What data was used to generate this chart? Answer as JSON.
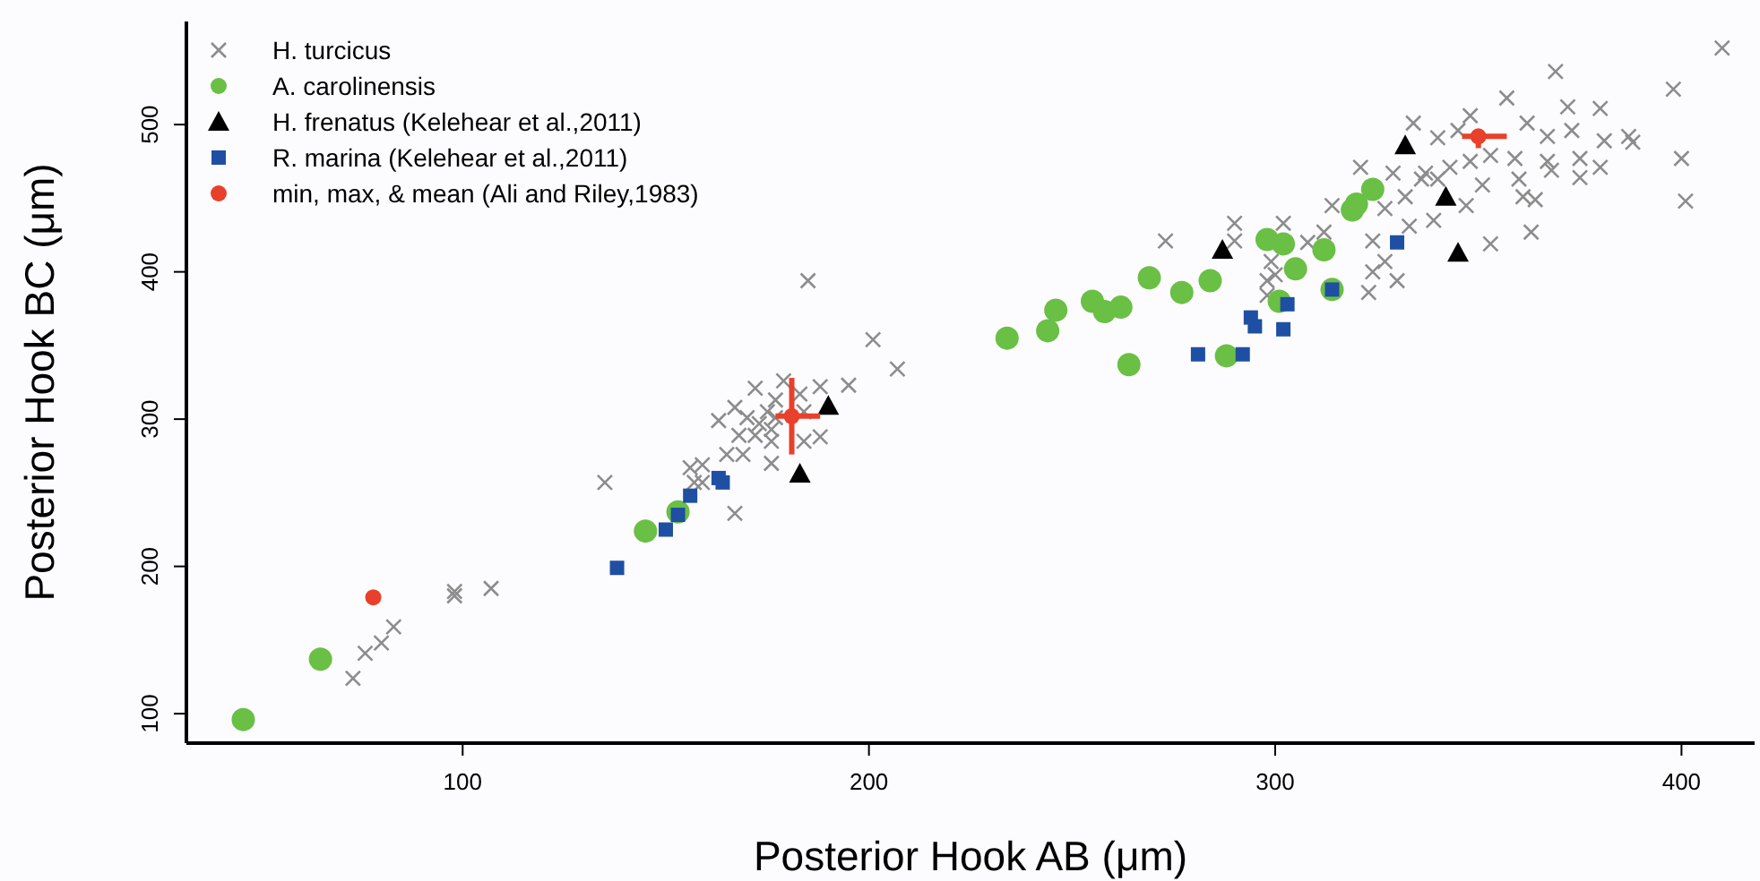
{
  "chart_data": {
    "type": "scatter",
    "xlabel": "Posterior Hook AB (μm)",
    "ylabel": "Posterior Hook BC (μm)",
    "xlim": [
      32,
      418
    ],
    "ylim": [
      80,
      570
    ],
    "xticks": [
      100,
      200,
      300,
      400
    ],
    "yticks": [
      100,
      200,
      300,
      400,
      500
    ],
    "grid": false,
    "legend": "top left",
    "series": [
      {
        "name": "H. turcicus",
        "color": "#8c8c8c",
        "marker": "cross",
        "x": [
          73,
          76,
          80,
          83,
          98,
          98,
          107,
          135,
          201,
          207,
          195,
          188,
          188,
          184,
          167,
          156,
          159,
          157,
          159,
          165,
          169,
          163,
          167,
          172,
          172,
          176,
          176,
          177,
          177,
          175,
          173,
          170,
          183,
          184,
          176,
          179,
          168,
          185,
          273,
          290,
          302,
          290,
          299,
          298,
          300,
          298,
          308,
          312,
          314,
          321,
          323,
          324,
          327,
          327,
          324,
          329,
          334,
          332,
          333,
          337,
          340,
          339,
          336,
          340,
          343,
          345,
          348,
          348,
          351,
          347,
          353,
          353,
          357,
          359,
          360,
          362,
          361,
          363,
          364,
          367,
          367,
          369,
          368,
          372,
          373,
          375,
          375,
          380,
          381,
          380,
          387,
          388,
          398,
          400,
          401,
          410,
          330
        ],
        "values": [
          124,
          141,
          148,
          159,
          183,
          180,
          185,
          257,
          354,
          334,
          323,
          322,
          288,
          285,
          236,
          267,
          269,
          257,
          257,
          276,
          276,
          299,
          308,
          321,
          289,
          270,
          293,
          313,
          301,
          305,
          297,
          301,
          317,
          305,
          285,
          326,
          289,
          394,
          421,
          433,
          433,
          421,
          407,
          394,
          398,
          384,
          420,
          427,
          445,
          471,
          386,
          400,
          407,
          443,
          421,
          467,
          501,
          451,
          431,
          467,
          491,
          435,
          463,
          463,
          471,
          496,
          506,
          475,
          459,
          445,
          419,
          479,
          518,
          477,
          463,
          501,
          451,
          427,
          449,
          492,
          475,
          536,
          469,
          512,
          496,
          477,
          464,
          511,
          489,
          471,
          492,
          488,
          524,
          477,
          448,
          552,
          394
        ]
      },
      {
        "name": "A. carolinensis",
        "color": "#6abf45",
        "marker": "circle",
        "x": [
          46,
          65,
          145,
          153,
          234,
          244,
          246,
          255,
          258,
          262,
          264,
          269,
          277,
          284,
          288,
          298,
          302,
          301,
          305,
          312,
          314,
          319,
          320,
          324
        ],
        "values": [
          96,
          137,
          224,
          237,
          355,
          360,
          374,
          380,
          373,
          376,
          337,
          396,
          386,
          394,
          343,
          422,
          419,
          380,
          402,
          415,
          388,
          442,
          446,
          456
        ]
      },
      {
        "name": "H. frenatus (Kelehear et al.,2011)",
        "color": "#000000",
        "marker": "triangle",
        "x": [
          190,
          183,
          287,
          332,
          342,
          345
        ],
        "values": [
          309,
          263,
          415,
          486,
          451,
          413
        ]
      },
      {
        "name": "R. marina (Kelehear et al.,2011)",
        "color": "#1f4fa3",
        "marker": "square",
        "x": [
          138,
          150,
          153,
          156,
          163,
          164,
          281,
          292,
          294,
          295,
          302,
          303,
          314,
          330
        ],
        "values": [
          199,
          225,
          235,
          248,
          260,
          257,
          344,
          344,
          369,
          363,
          361,
          378,
          388,
          420
        ]
      },
      {
        "name": "min, max, & mean (Ali and Riley,1983)",
        "color": "#e8402a",
        "marker": "circle",
        "x": [
          78,
          181,
          350
        ],
        "values": [
          179,
          302,
          492
        ],
        "errors": [
          null,
          [
            276,
            328
          ],
          [
            484,
            495
          ]
        ],
        "xerrors": [
          null,
          [
            177,
            188
          ],
          [
            346,
            357
          ]
        ]
      }
    ]
  }
}
